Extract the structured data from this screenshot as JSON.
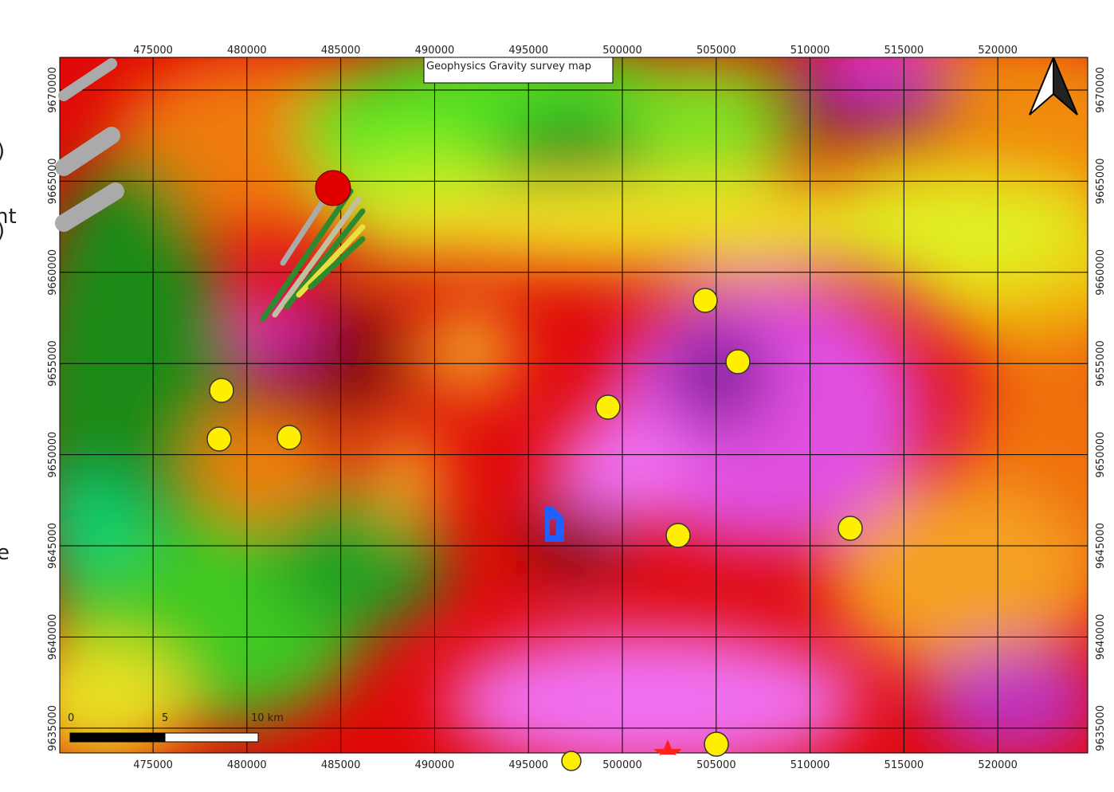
{
  "map": {
    "title": "Geophysics Gravity survey map",
    "xlim": [
      470030,
      524790
    ],
    "ylim": [
      9633640,
      9671790
    ],
    "xticks": [
      475000,
      480000,
      485000,
      490000,
      495000,
      500000,
      505000,
      510000,
      515000,
      520000
    ],
    "yticks": [
      9635000,
      9640000,
      9645000,
      9650000,
      9655000,
      9660000,
      9665000,
      9670000
    ],
    "scale_bar": {
      "labels": [
        "0",
        "5",
        "10 km"
      ]
    },
    "side_text": [
      ")",
      "nt",
      ")",
      "e"
    ]
  }
}
